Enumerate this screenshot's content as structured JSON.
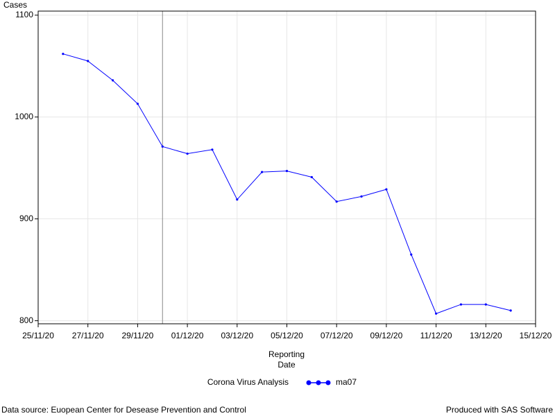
{
  "chart_data": {
    "type": "line",
    "y_label": "Cases",
    "x_label": "Reporting Date",
    "legend_title": "Corona Virus Analysis",
    "x": [
      "26/11/20",
      "27/11/20",
      "28/11/20",
      "29/11/20",
      "30/11/20",
      "01/12/20",
      "02/12/20",
      "03/12/20",
      "04/12/20",
      "05/12/20",
      "06/12/20",
      "07/12/20",
      "08/12/20",
      "09/12/20",
      "10/12/20",
      "11/12/20",
      "12/12/20",
      "13/12/20",
      "14/12/20"
    ],
    "series": [
      {
        "name": "ma07",
        "color": "#0000ff",
        "values": [
          1062,
          1055,
          1036,
          1013,
          971,
          964,
          968,
          919,
          946,
          947,
          941,
          917,
          922,
          929,
          865,
          807,
          816,
          816,
          810
        ]
      }
    ],
    "xlim": [
      "25/11/20",
      "15/12/20"
    ],
    "xticks": [
      "25/11/20",
      "27/11/20",
      "29/11/20",
      "01/12/20",
      "03/12/20",
      "05/12/20",
      "07/12/20",
      "09/12/20",
      "11/12/20",
      "13/12/20",
      "15/12/20"
    ],
    "ylim": [
      797,
      1104
    ],
    "yticks": [
      800,
      900,
      1000,
      1100
    ],
    "reference_line_x": "30/11/20",
    "grid": true
  },
  "footnote_left": "Data source: Euopean Center for Desease Prevention and Control",
  "footnote_right": "Produced with SAS Software"
}
